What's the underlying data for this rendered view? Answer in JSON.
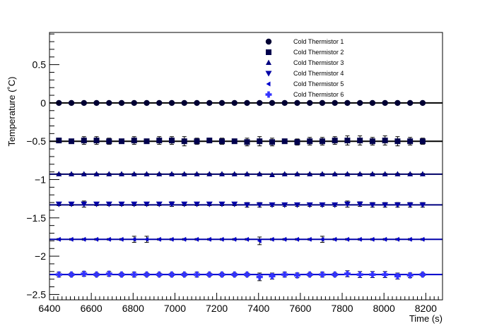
{
  "chart_data": {
    "type": "scatter",
    "title": "",
    "xlabel": "Time (s)",
    "ylabel": "Temperature (˚C)",
    "xlim": [
      6400,
      8280
    ],
    "ylim": [
      -2.57,
      0.92
    ],
    "x_ticks": [
      6400,
      6600,
      6800,
      7000,
      7200,
      7400,
      7600,
      7800,
      8000,
      8200
    ],
    "x_tick_labels": [
      "6400",
      "6600",
      "6800",
      "7000",
      "7200",
      "7400",
      "7600",
      "7800",
      "8000",
      "8200"
    ],
    "y_ticks": [
      0.5,
      0,
      -0.5,
      -1,
      -1.5,
      -2,
      -2.5
    ],
    "y_tick_labels": [
      "0.5",
      "0",
      "−0.5",
      "−1",
      "−1.5",
      "−2",
      "−2.5"
    ],
    "grid": false,
    "legend_position": "top-right",
    "x": [
      6445,
      6505,
      6565,
      6625,
      6685,
      6745,
      6805,
      6865,
      6925,
      6985,
      7045,
      7105,
      7165,
      7225,
      7285,
      7345,
      7405,
      7465,
      7525,
      7585,
      7645,
      7705,
      7765,
      7825,
      7885,
      7945,
      8005,
      8065,
      8125,
      8185
    ],
    "series": [
      {
        "name": "Cold Thermistor 1",
        "marker": "circle",
        "color": "#000033",
        "fit": 0.0,
        "fit_color": "#000000",
        "y": [
          0.0,
          0.0,
          0.0,
          0.0,
          0.0,
          0.0,
          0.0,
          0.0,
          0.0,
          0.0,
          0.0,
          0.0,
          0.0,
          0.0,
          0.0,
          0.0,
          0.0,
          0.0,
          0.0,
          0.0,
          0.0,
          0.0,
          0.0,
          0.0,
          0.0,
          0.0,
          0.0,
          0.0,
          0.0,
          0.0
        ],
        "err": [
          0.02,
          0.02,
          0.02,
          0.02,
          0.02,
          0.02,
          0.02,
          0.02,
          0.02,
          0.02,
          0.02,
          0.02,
          0.02,
          0.02,
          0.02,
          0.02,
          0.02,
          0.02,
          0.02,
          0.02,
          0.02,
          0.02,
          0.02,
          0.02,
          0.02,
          0.02,
          0.02,
          0.02,
          0.02,
          0.02
        ]
      },
      {
        "name": "Cold Thermistor 2",
        "marker": "square",
        "color": "#00004d",
        "fit": -0.5,
        "fit_color": "#000000",
        "y": [
          -0.49,
          -0.5,
          -0.49,
          -0.49,
          -0.5,
          -0.5,
          -0.49,
          -0.5,
          -0.49,
          -0.49,
          -0.5,
          -0.5,
          -0.49,
          -0.5,
          -0.5,
          -0.51,
          -0.5,
          -0.51,
          -0.5,
          -0.51,
          -0.5,
          -0.5,
          -0.49,
          -0.49,
          -0.49,
          -0.5,
          -0.49,
          -0.5,
          -0.5,
          -0.5
        ],
        "err": [
          0.03,
          0.02,
          0.05,
          0.05,
          0.04,
          0.03,
          0.05,
          0.03,
          0.05,
          0.05,
          0.06,
          0.04,
          0.03,
          0.04,
          0.03,
          0.05,
          0.06,
          0.05,
          0.03,
          0.04,
          0.05,
          0.05,
          0.05,
          0.06,
          0.06,
          0.05,
          0.06,
          0.06,
          0.05,
          0.04
        ]
      },
      {
        "name": "Cold Thermistor 3",
        "marker": "triangle-up",
        "color": "#000080",
        "fit": -0.93,
        "fit_color": "#000066",
        "y": [
          -0.93,
          -0.93,
          -0.93,
          -0.93,
          -0.93,
          -0.93,
          -0.93,
          -0.93,
          -0.93,
          -0.93,
          -0.93,
          -0.93,
          -0.93,
          -0.93,
          -0.93,
          -0.93,
          -0.93,
          -0.94,
          -0.93,
          -0.93,
          -0.93,
          -0.93,
          -0.93,
          -0.93,
          -0.93,
          -0.93,
          -0.93,
          -0.93,
          -0.93,
          -0.93
        ],
        "err": [
          0.01,
          0.01,
          0.01,
          0.01,
          0.01,
          0.01,
          0.01,
          0.01,
          0.01,
          0.01,
          0.01,
          0.01,
          0.01,
          0.01,
          0.01,
          0.01,
          0.01,
          0.01,
          0.01,
          0.01,
          0.01,
          0.01,
          0.01,
          0.01,
          0.01,
          0.01,
          0.01,
          0.01,
          0.01,
          0.01
        ]
      },
      {
        "name": "Cold Thermistor 4",
        "marker": "triangle-down",
        "color": "#0000a6",
        "fit": -1.33,
        "fit_color": "#000080",
        "y": [
          -1.32,
          -1.32,
          -1.32,
          -1.32,
          -1.32,
          -1.32,
          -1.32,
          -1.32,
          -1.32,
          -1.32,
          -1.32,
          -1.32,
          -1.32,
          -1.32,
          -1.32,
          -1.33,
          -1.33,
          -1.33,
          -1.33,
          -1.33,
          -1.33,
          -1.33,
          -1.33,
          -1.32,
          -1.32,
          -1.33,
          -1.33,
          -1.33,
          -1.33,
          -1.33
        ],
        "err": [
          0.02,
          0.02,
          0.04,
          0.02,
          0.02,
          0.02,
          0.02,
          0.02,
          0.02,
          0.03,
          0.02,
          0.02,
          0.02,
          0.02,
          0.02,
          0.03,
          0.03,
          0.02,
          0.02,
          0.02,
          0.02,
          0.02,
          0.02,
          0.04,
          0.03,
          0.03,
          0.03,
          0.03,
          0.03,
          0.03
        ]
      },
      {
        "name": "Cold Thermistor 5",
        "marker": "triangle-left",
        "color": "#0000cc",
        "fit": -1.78,
        "fit_color": "#0000aa",
        "y": [
          -1.78,
          -1.78,
          -1.78,
          -1.78,
          -1.78,
          -1.78,
          -1.78,
          -1.78,
          -1.78,
          -1.78,
          -1.78,
          -1.78,
          -1.78,
          -1.78,
          -1.78,
          -1.78,
          -1.8,
          -1.78,
          -1.78,
          -1.78,
          -1.78,
          -1.78,
          -1.78,
          -1.78,
          -1.78,
          -1.78,
          -1.78,
          -1.78,
          -1.78,
          -1.78
        ],
        "err": [
          0.01,
          0.01,
          0.01,
          0.01,
          0.01,
          0.01,
          0.04,
          0.04,
          0.01,
          0.01,
          0.01,
          0.01,
          0.01,
          0.01,
          0.01,
          0.01,
          0.05,
          0.01,
          0.01,
          0.01,
          0.01,
          0.04,
          0.01,
          0.01,
          0.01,
          0.01,
          0.01,
          0.01,
          0.01,
          0.01
        ]
      },
      {
        "name": "Cold Thermistor 6",
        "marker": "cross",
        "color": "#3333ff",
        "fit": -2.24,
        "fit_color": "#0000cc",
        "y": [
          -2.24,
          -2.24,
          -2.23,
          -2.24,
          -2.23,
          -2.24,
          -2.24,
          -2.24,
          -2.24,
          -2.24,
          -2.24,
          -2.24,
          -2.24,
          -2.24,
          -2.24,
          -2.24,
          -2.27,
          -2.26,
          -2.24,
          -2.25,
          -2.24,
          -2.24,
          -2.24,
          -2.23,
          -2.24,
          -2.24,
          -2.24,
          -2.26,
          -2.25,
          -2.24
        ],
        "err": [
          0.03,
          0.02,
          0.03,
          0.02,
          0.03,
          0.02,
          0.03,
          0.02,
          0.02,
          0.02,
          0.02,
          0.03,
          0.02,
          0.02,
          0.02,
          0.02,
          0.05,
          0.04,
          0.03,
          0.03,
          0.02,
          0.03,
          0.02,
          0.04,
          0.04,
          0.04,
          0.04,
          0.04,
          0.03,
          0.02
        ]
      }
    ]
  }
}
